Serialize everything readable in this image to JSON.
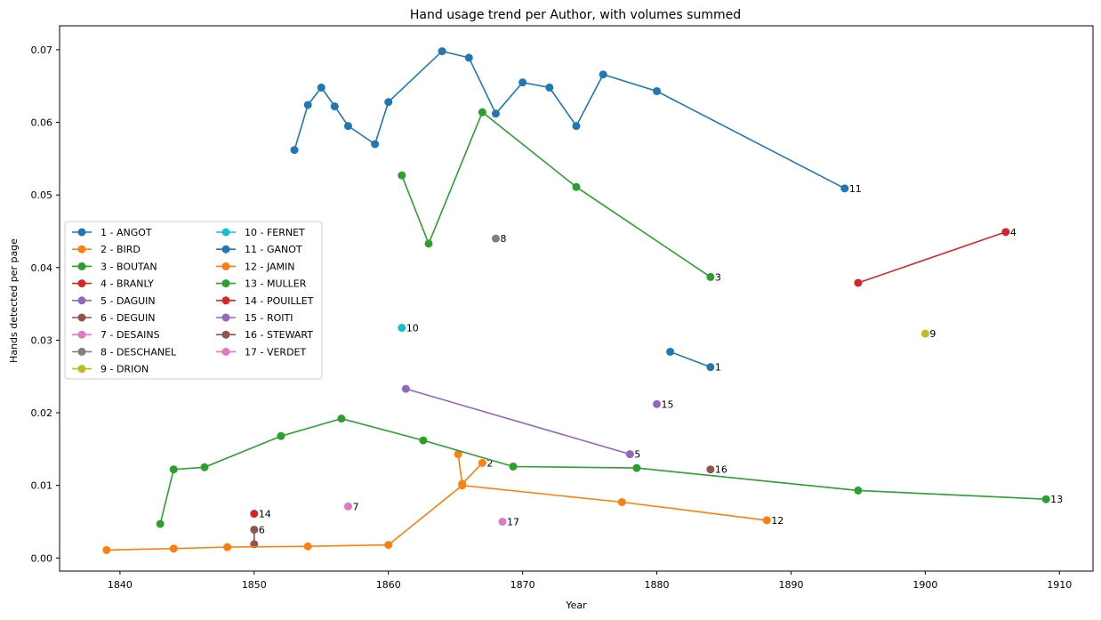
{
  "chart_data": {
    "type": "line",
    "title": "Hand usage trend per Author, with volumes summed",
    "xlabel": "Year",
    "ylabel": "Hands detected per page",
    "xlim": [
      1835.5,
      1912.5
    ],
    "ylim": [
      -0.0018,
      0.0733
    ],
    "xticks": [
      1840,
      1850,
      1860,
      1870,
      1880,
      1890,
      1900,
      1910
    ],
    "yticks": [
      0.0,
      0.01,
      0.02,
      0.03,
      0.04,
      0.05,
      0.06,
      0.07
    ],
    "ytick_labels": [
      "0.00",
      "0.01",
      "0.02",
      "0.03",
      "0.04",
      "0.05",
      "0.06",
      "0.07"
    ],
    "grid": false,
    "legend_position": "center-left",
    "legend_columns": 2,
    "series": [
      {
        "name": "1 - ANGOT",
        "end_label": "1",
        "color": "#1f77b4",
        "x": [
          1881,
          1884
        ],
        "y": [
          0.0284,
          0.0263
        ]
      },
      {
        "name": "2 - BIRD",
        "end_label": "2",
        "color": "#ff7f0e",
        "x": [
          1865.2,
          1865.5,
          1867
        ],
        "y": [
          0.0143,
          0.0102,
          0.0131
        ]
      },
      {
        "name": "3 - BOUTAN",
        "end_label": "3",
        "color": "#2ca02c",
        "x": [
          1861,
          1863,
          1867,
          1874,
          1884
        ],
        "y": [
          0.0527,
          0.0433,
          0.0614,
          0.0511,
          0.0387
        ]
      },
      {
        "name": "4 - BRANLY",
        "end_label": "4",
        "color": "#d62728",
        "x": [
          1895,
          1906
        ],
        "y": [
          0.0379,
          0.0449
        ]
      },
      {
        "name": "5 - DAGUIN",
        "end_label": "5",
        "color": "#9467bd",
        "x": [
          1861.3,
          1878
        ],
        "y": [
          0.0233,
          0.0143
        ]
      },
      {
        "name": "6 - DEGUIN",
        "end_label": "6",
        "color": "#8c564b",
        "x": [
          1850,
          1850
        ],
        "y": [
          0.0019,
          0.0039
        ]
      },
      {
        "name": "7 - DESAINS",
        "end_label": "7",
        "color": "#e377c2",
        "x": [
          1857
        ],
        "y": [
          0.0071
        ]
      },
      {
        "name": "8 - DESCHANEL",
        "end_label": "8",
        "color": "#7f7f7f",
        "x": [
          1868
        ],
        "y": [
          0.044
        ]
      },
      {
        "name": "9 - DRION",
        "end_label": "9",
        "color": "#bcbd22",
        "x": [
          1900
        ],
        "y": [
          0.0309
        ]
      },
      {
        "name": "10 - FERNET",
        "end_label": "10",
        "color": "#17becf",
        "x": [
          1861
        ],
        "y": [
          0.0317
        ]
      },
      {
        "name": "11 - GANOT",
        "end_label": "11",
        "color": "#1f77b4",
        "x": [
          1853,
          1854,
          1855,
          1856,
          1857,
          1859,
          1860,
          1864,
          1866,
          1868,
          1870,
          1872,
          1874,
          1876,
          1880,
          1894
        ],
        "y": [
          0.0562,
          0.0624,
          0.0648,
          0.0622,
          0.0595,
          0.057,
          0.0628,
          0.0698,
          0.0689,
          0.0612,
          0.0655,
          0.0648,
          0.0595,
          0.0666,
          0.0643,
          0.0509
        ]
      },
      {
        "name": "12 - JAMIN",
        "end_label": "12",
        "color": "#ff7f0e",
        "x": [
          1839,
          1844,
          1848,
          1854,
          1860,
          1865.5,
          1877.4,
          1888.2
        ],
        "y": [
          0.0011,
          0.0013,
          0.0015,
          0.0016,
          0.0018,
          0.01,
          0.0077,
          0.0052
        ]
      },
      {
        "name": "13 - MULLER",
        "end_label": "13",
        "color": "#2ca02c",
        "x": [
          1843,
          1844,
          1846.3,
          1852,
          1856.5,
          1862.6,
          1869.3,
          1878.5,
          1895,
          1909
        ],
        "y": [
          0.0047,
          0.0122,
          0.0125,
          0.0168,
          0.0192,
          0.0162,
          0.0126,
          0.0124,
          0.0093,
          0.0081
        ]
      },
      {
        "name": "14 - POUILLET",
        "end_label": "14",
        "color": "#d62728",
        "x": [
          1850
        ],
        "y": [
          0.0061
        ]
      },
      {
        "name": "15 - ROITI",
        "end_label": "15",
        "color": "#9467bd",
        "x": [
          1880
        ],
        "y": [
          0.0212
        ]
      },
      {
        "name": "16 - STEWART",
        "end_label": "16",
        "color": "#8c564b",
        "x": [
          1884
        ],
        "y": [
          0.0122
        ]
      },
      {
        "name": "17 - VERDET",
        "end_label": "17",
        "color": "#e377c2",
        "x": [
          1868.5
        ],
        "y": [
          0.005
        ]
      }
    ]
  }
}
